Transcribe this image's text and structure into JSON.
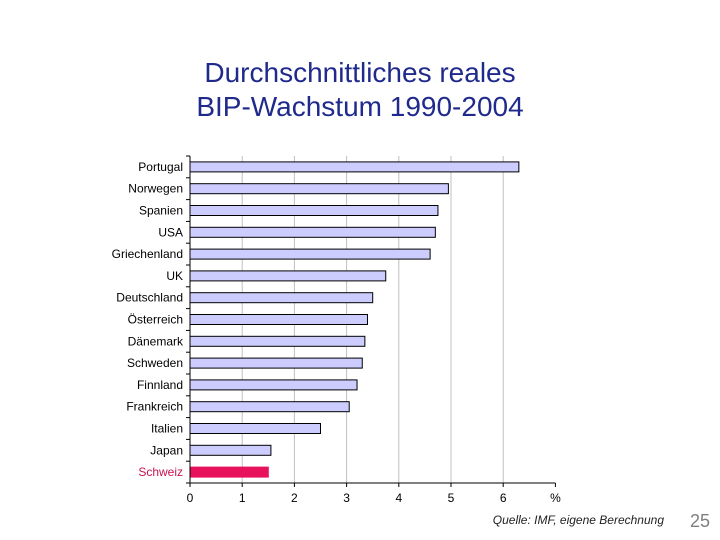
{
  "title": {
    "line1": "Durchschnittliches reales",
    "line2": "BIP-Wachstum 1990-2004"
  },
  "chart_data": {
    "type": "bar",
    "orientation": "horizontal",
    "categories": [
      "Portugal",
      "Norwegen",
      "Spanien",
      "USA",
      "Griechenland",
      "UK",
      "Deutschland",
      "Österreich",
      "Dänemark",
      "Schweden",
      "Finnland",
      "Frankreich",
      "Italien",
      "Japan",
      "Schweiz"
    ],
    "values": [
      6.3,
      4.95,
      4.75,
      4.7,
      4.6,
      3.75,
      3.5,
      3.4,
      3.35,
      3.3,
      3.2,
      3.05,
      2.5,
      1.55,
      1.5
    ],
    "highlight": "Schweiz",
    "xlim": [
      0,
      7
    ],
    "xticks": [
      "0",
      "1",
      "2",
      "3",
      "4",
      "5",
      "6",
      "%"
    ],
    "grid": true,
    "colors": {
      "bar": "#ccccff",
      "bar_outline": "#000000",
      "highlight": "#e8125c",
      "highlight_label": "#c8124f",
      "grid": "#c0c0c0"
    }
  },
  "source": "Quelle: IMF, eigene Berechnung",
  "slide_number": "25"
}
